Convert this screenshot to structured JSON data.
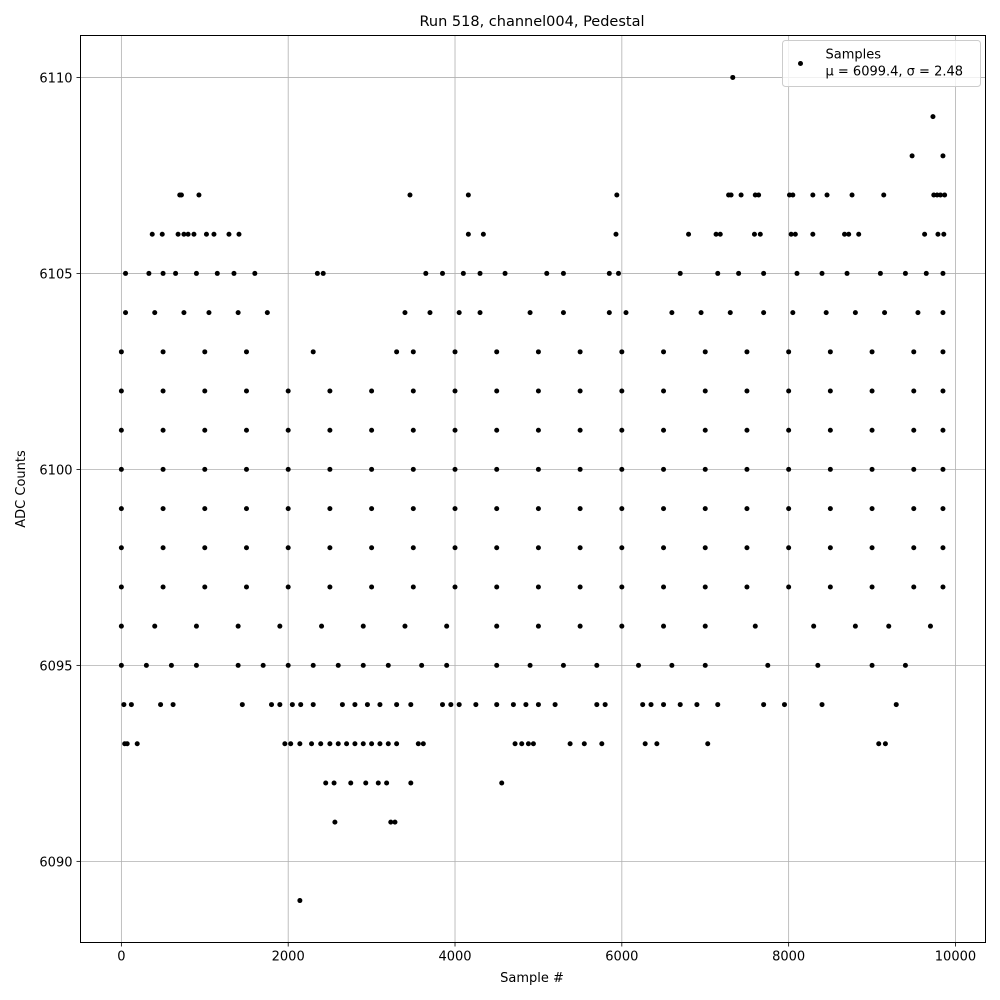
{
  "chart_data": {
    "type": "scatter",
    "title": "Run 518, channel004, Pedestal",
    "xlabel": "Sample #",
    "ylabel": "ADC Counts",
    "xlim": [
      -490,
      10360
    ],
    "ylim": [
      6087.93,
      6111.07
    ],
    "xticks": [
      0,
      2000,
      4000,
      6000,
      8000,
      10000
    ],
    "yticks": [
      6090,
      6095,
      6100,
      6105,
      6110
    ],
    "grid": true,
    "legend": "upper right",
    "legend_stats": "μ = 6099.4, σ = 2.48",
    "series": [
      {
        "name": "Samples",
        "color": "#000000",
        "x": [
          0,
          500,
          1000,
          1500,
          2000,
          2500,
          3000,
          3500,
          4000,
          4500,
          5000,
          5500,
          6000,
          6500,
          7000,
          7500,
          8000,
          8500,
          9000,
          9500,
          9850,
          0,
          500,
          1000,
          1500,
          2000,
          2500,
          3000,
          3500,
          4000,
          4500,
          5000,
          5500,
          6000,
          6500,
          7000,
          7500,
          8000,
          8500,
          9000,
          9500,
          9850,
          0,
          500,
          1000,
          1500,
          2000,
          2500,
          3000,
          3500,
          4000,
          4500,
          5000,
          5500,
          6000,
          6500,
          7000,
          7500,
          8000,
          8500,
          9000,
          9500,
          9850,
          0,
          500,
          1000,
          1500,
          2000,
          2500,
          3000,
          3500,
          4000,
          4500,
          5000,
          5500,
          6000,
          6500,
          7000,
          7500,
          8000,
          8500,
          9000,
          9500,
          9850,
          0,
          500,
          1000,
          1500,
          2000,
          2500,
          3000,
          3500,
          4000,
          4500,
          5000,
          5500,
          6000,
          6500,
          7000,
          7500,
          8000,
          8500,
          9000,
          9500,
          9850,
          0,
          500,
          1000,
          1500,
          2000,
          2500,
          3000,
          3500,
          4000,
          4500,
          5000,
          5500,
          6000,
          6500,
          7000,
          7500,
          8000,
          8500,
          9000,
          9500,
          9850,
          0,
          500,
          1000,
          1500,
          2300,
          3300,
          3500,
          4000,
          4500,
          5000,
          5500,
          6000,
          6500,
          7000,
          7500,
          8000,
          8500,
          9000,
          9500,
          9850,
          0,
          400,
          900,
          1400,
          1900,
          2400,
          2900,
          3400,
          3900,
          4500,
          5000,
          5500,
          6000,
          6500,
          7000,
          7600,
          8300,
          8800,
          9200,
          9700,
          0,
          300,
          600,
          900,
          1400,
          1700,
          2000,
          2300,
          2600,
          2900,
          3200,
          3600,
          3900,
          4500,
          4900,
          5300,
          5700,
          6200,
          6600,
          7000,
          7750,
          8350,
          9000,
          9400,
          50,
          400,
          750,
          1050,
          1400,
          1750,
          3400,
          3700,
          4050,
          4300,
          4900,
          5300,
          5850,
          6050,
          6600,
          6950,
          7300,
          7700,
          8050,
          8450,
          8800,
          9150,
          9550,
          9850,
          50,
          330,
          500,
          650,
          900,
          1150,
          1350,
          1600,
          2350,
          2420,
          3650,
          3850,
          4100,
          4300,
          4600,
          5100,
          5300,
          5850,
          5960,
          6700,
          7150,
          7400,
          7700,
          8100,
          8400,
          8700,
          9100,
          9400,
          9650,
          9850,
          370,
          490,
          680,
          750,
          800,
          870,
          1020,
          1110,
          1290,
          1410,
          4160,
          4340,
          5930,
          6800,
          7130,
          7180,
          7590,
          7660,
          8030,
          8080,
          8290,
          8670,
          8720,
          8840,
          9630,
          9790,
          9860,
          700,
          720,
          930,
          3460,
          4160,
          5940,
          7280,
          7310,
          7430,
          7600,
          7640,
          8010,
          8050,
          8290,
          8460,
          8760,
          9140,
          9740,
          9780,
          9820,
          9870,
          30,
          120,
          470,
          620,
          1450,
          1800,
          1900,
          2050,
          2150,
          2300,
          2650,
          2800,
          2950,
          3100,
          3300,
          3470,
          3850,
          3950,
          4050,
          4250,
          4500,
          4700,
          4850,
          5000,
          5200,
          5700,
          5800,
          6250,
          6350,
          6500,
          6700,
          6900,
          7150,
          7700,
          7950,
          8400,
          9290,
          40,
          70,
          190,
          1960,
          2030,
          2140,
          2280,
          2390,
          2500,
          2600,
          2700,
          2800,
          2900,
          3000,
          3100,
          3200,
          3300,
          3560,
          3620,
          4720,
          4800,
          4880,
          4940,
          5380,
          5550,
          5760,
          6280,
          6420,
          7030,
          9080,
          9160,
          2450,
          2550,
          2750,
          2930,
          3080,
          3180,
          3470,
          4560,
          2560,
          3230,
          3280,
          2140,
          9480,
          9850,
          9730,
          7330
        ],
        "y": [
          6100,
          6100,
          6100,
          6100,
          6100,
          6100,
          6100,
          6100,
          6100,
          6100,
          6100,
          6100,
          6100,
          6100,
          6100,
          6100,
          6100,
          6100,
          6100,
          6100,
          6100,
          6101,
          6101,
          6101,
          6101,
          6101,
          6101,
          6101,
          6101,
          6101,
          6101,
          6101,
          6101,
          6101,
          6101,
          6101,
          6101,
          6101,
          6101,
          6101,
          6101,
          6101,
          6102,
          6102,
          6102,
          6102,
          6102,
          6102,
          6102,
          6102,
          6102,
          6102,
          6102,
          6102,
          6102,
          6102,
          6102,
          6102,
          6102,
          6102,
          6102,
          6102,
          6102,
          6099,
          6099,
          6099,
          6099,
          6099,
          6099,
          6099,
          6099,
          6099,
          6099,
          6099,
          6099,
          6099,
          6099,
          6099,
          6099,
          6099,
          6099,
          6099,
          6099,
          6099,
          6098,
          6098,
          6098,
          6098,
          6098,
          6098,
          6098,
          6098,
          6098,
          6098,
          6098,
          6098,
          6098,
          6098,
          6098,
          6098,
          6098,
          6098,
          6098,
          6098,
          6098,
          6097,
          6097,
          6097,
          6097,
          6097,
          6097,
          6097,
          6097,
          6097,
          6097,
          6097,
          6097,
          6097,
          6097,
          6097,
          6097,
          6097,
          6097,
          6097,
          6097,
          6097,
          6103,
          6103,
          6103,
          6103,
          6103,
          6103,
          6103,
          6103,
          6103,
          6103,
          6103,
          6103,
          6103,
          6103,
          6103,
          6103,
          6103,
          6103,
          6103,
          6103,
          6096,
          6096,
          6096,
          6096,
          6096,
          6096,
          6096,
          6096,
          6096,
          6096,
          6096,
          6096,
          6096,
          6096,
          6096,
          6096,
          6096,
          6096,
          6096,
          6096,
          6095,
          6095,
          6095,
          6095,
          6095,
          6095,
          6095,
          6095,
          6095,
          6095,
          6095,
          6095,
          6095,
          6095,
          6095,
          6095,
          6095,
          6095,
          6095,
          6095,
          6095,
          6095,
          6095,
          6095,
          6104,
          6104,
          6104,
          6104,
          6104,
          6104,
          6104,
          6104,
          6104,
          6104,
          6104,
          6104,
          6104,
          6104,
          6104,
          6104,
          6104,
          6104,
          6104,
          6104,
          6104,
          6104,
          6104,
          6104,
          6105,
          6105,
          6105,
          6105,
          6105,
          6105,
          6105,
          6105,
          6105,
          6105,
          6105,
          6105,
          6105,
          6105,
          6105,
          6105,
          6105,
          6105,
          6105,
          6105,
          6105,
          6105,
          6105,
          6105,
          6105,
          6105,
          6105,
          6105,
          6105,
          6105,
          6106,
          6106,
          6106,
          6106,
          6106,
          6106,
          6106,
          6106,
          6106,
          6106,
          6106,
          6106,
          6106,
          6106,
          6106,
          6106,
          6106,
          6106,
          6106,
          6106,
          6106,
          6106,
          6106,
          6106,
          6106,
          6106,
          6106,
          6107,
          6107,
          6107,
          6107,
          6107,
          6107,
          6107,
          6107,
          6107,
          6107,
          6107,
          6107,
          6107,
          6107,
          6107,
          6107,
          6107,
          6107,
          6107,
          6107,
          6107,
          6094,
          6094,
          6094,
          6094,
          6094,
          6094,
          6094,
          6094,
          6094,
          6094,
          6094,
          6094,
          6094,
          6094,
          6094,
          6094,
          6094,
          6094,
          6094,
          6094,
          6094,
          6094,
          6094,
          6094,
          6094,
          6094,
          6094,
          6094,
          6094,
          6094,
          6094,
          6094,
          6094,
          6094,
          6094,
          6094,
          6094,
          6093,
          6093,
          6093,
          6093,
          6093,
          6093,
          6093,
          6093,
          6093,
          6093,
          6093,
          6093,
          6093,
          6093,
          6093,
          6093,
          6093,
          6093,
          6093,
          6093,
          6093,
          6093,
          6093,
          6093,
          6093,
          6093,
          6093,
          6093,
          6093,
          6093,
          6093,
          6092,
          6092,
          6092,
          6092,
          6092,
          6092,
          6092,
          6092,
          6091,
          6091,
          6091,
          6089,
          6108,
          6108,
          6109,
          6110
        ]
      }
    ]
  }
}
